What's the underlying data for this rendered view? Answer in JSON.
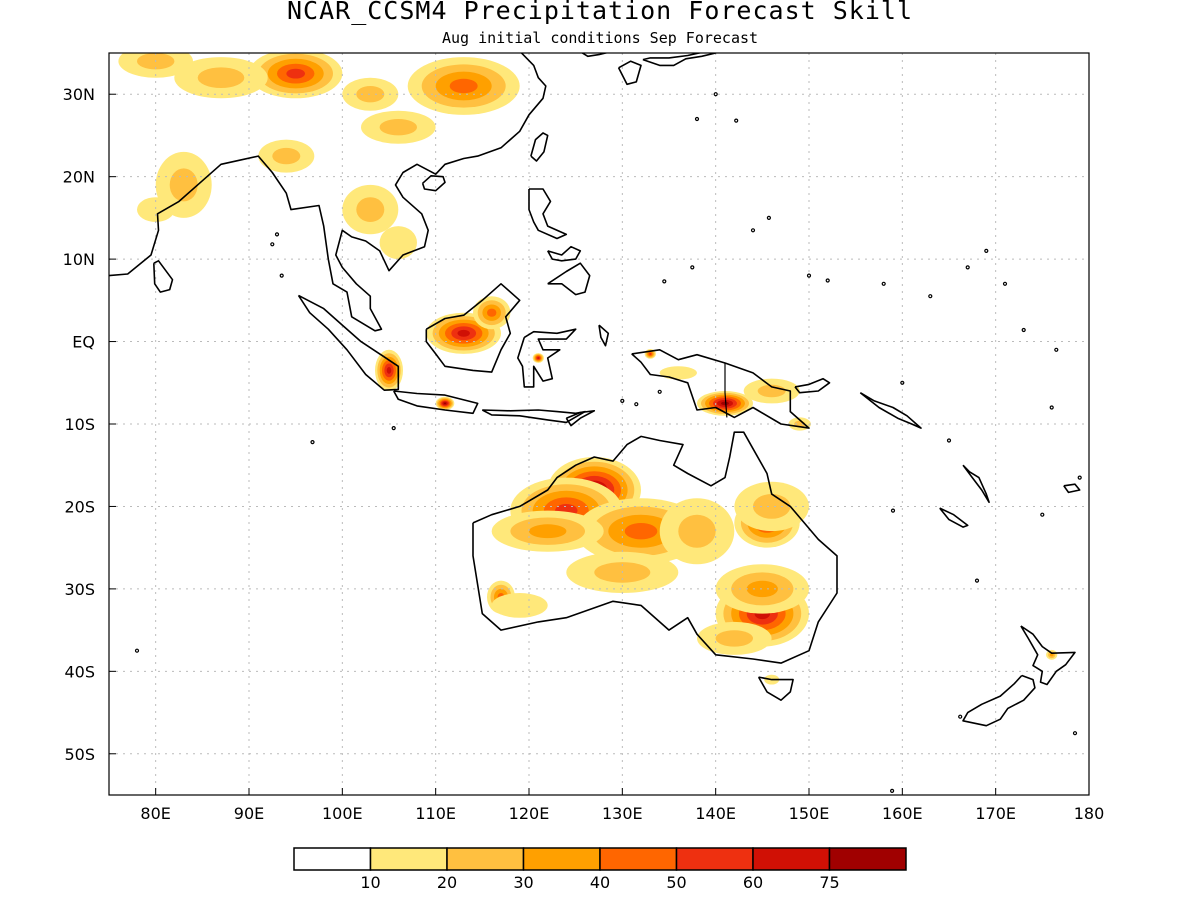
{
  "title": "NCAR_CCSM4 Precipitation Forecast Skill",
  "subtitle": "Aug initial conditions  Sep Forecast",
  "map": {
    "lon_range": [
      75,
      180
    ],
    "lat_range": [
      -55,
      35
    ],
    "lon_ticks": [
      {
        "value": 80,
        "label": "80E"
      },
      {
        "value": 90,
        "label": "90E"
      },
      {
        "value": 100,
        "label": "100E"
      },
      {
        "value": 110,
        "label": "110E"
      },
      {
        "value": 120,
        "label": "120E"
      },
      {
        "value": 130,
        "label": "130E"
      },
      {
        "value": 140,
        "label": "140E"
      },
      {
        "value": 150,
        "label": "150E"
      },
      {
        "value": 160,
        "label": "160E"
      },
      {
        "value": 170,
        "label": "170E"
      },
      {
        "value": 180,
        "label": "180"
      }
    ],
    "lat_ticks": [
      {
        "value": 30,
        "label": "30N"
      },
      {
        "value": 20,
        "label": "20N"
      },
      {
        "value": 10,
        "label": "10N"
      },
      {
        "value": 0,
        "label": "EQ"
      },
      {
        "value": -10,
        "label": "10S"
      },
      {
        "value": -20,
        "label": "20S"
      },
      {
        "value": -30,
        "label": "30S"
      },
      {
        "value": -40,
        "label": "40S"
      },
      {
        "value": -50,
        "label": "50S"
      }
    ],
    "grid": true
  },
  "colorbar": {
    "colors": [
      "#ffffff",
      "#ffe87a",
      "#ffc040",
      "#ffa000",
      "#ff6600",
      "#ee3010",
      "#d01005",
      "#a00000"
    ],
    "labels": [
      "10",
      "20",
      "30",
      "40",
      "50",
      "60",
      "75"
    ]
  },
  "coast_color": "#000000"
}
